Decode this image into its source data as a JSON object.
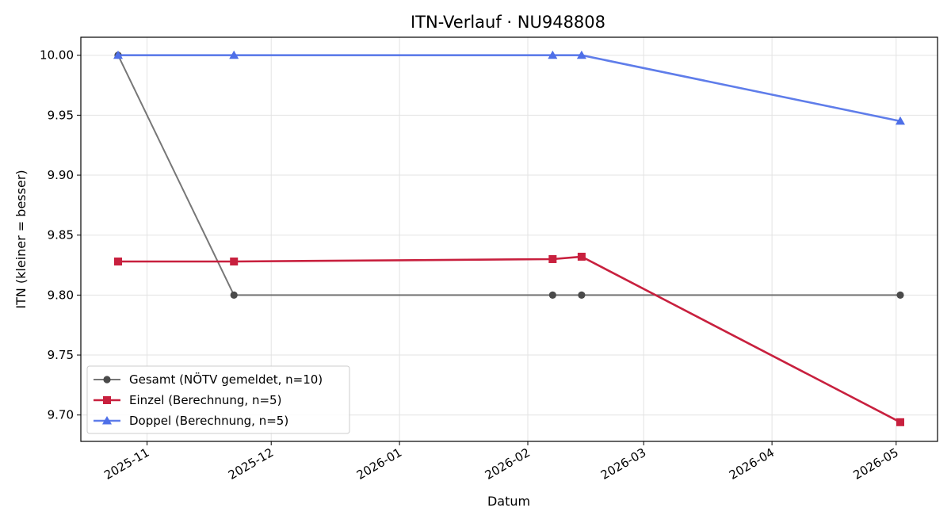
{
  "chart_data": {
    "type": "line",
    "title": "ITN-Verlauf · NU948808",
    "xlabel": "Datum",
    "ylabel": "ITN  (kleiner = besser)",
    "x_ticks": [
      "2025-11",
      "2025-12",
      "2026-01",
      "2026-02",
      "2026-03",
      "2026-04",
      "2026-05"
    ],
    "y_ticks": [
      "9.70",
      "9.75",
      "9.80",
      "9.85",
      "9.90",
      "9.95",
      "10.00"
    ],
    "xlim": [
      "2025-10-16",
      "2026-05-11"
    ],
    "ylim": [
      9.678,
      10.015
    ],
    "grid": true,
    "legend_position": "lower-left",
    "series": [
      {
        "name": "Gesamt (NÖTV gemeldet, n=10)",
        "color": "#4a4a4a",
        "marker": "circle",
        "points": [
          {
            "x": "2025-10-25",
            "y": 10.0
          },
          {
            "x": "2025-11-22",
            "y": 9.8
          },
          {
            "x": "2026-02-07",
            "y": 9.8
          },
          {
            "x": "2026-02-14",
            "y": 9.8
          },
          {
            "x": "2026-05-02",
            "y": 9.8
          }
        ]
      },
      {
        "name": "Einzel (Berechnung, n=5)",
        "color": "#c8203e",
        "marker": "square",
        "points": [
          {
            "x": "2025-10-25",
            "y": 9.828
          },
          {
            "x": "2025-11-22",
            "y": 9.828
          },
          {
            "x": "2026-02-07",
            "y": 9.83
          },
          {
            "x": "2026-02-14",
            "y": 9.832
          },
          {
            "x": "2026-05-02",
            "y": 9.694
          }
        ]
      },
      {
        "name": "Doppel (Berechnung, n=5)",
        "color": "#4e6fe8",
        "marker": "triangle",
        "points": [
          {
            "x": "2025-10-25",
            "y": 10.0
          },
          {
            "x": "2025-11-22",
            "y": 10.0
          },
          {
            "x": "2026-02-07",
            "y": 10.0
          },
          {
            "x": "2026-02-14",
            "y": 10.0
          },
          {
            "x": "2026-05-02",
            "y": 9.945
          }
        ]
      }
    ]
  }
}
